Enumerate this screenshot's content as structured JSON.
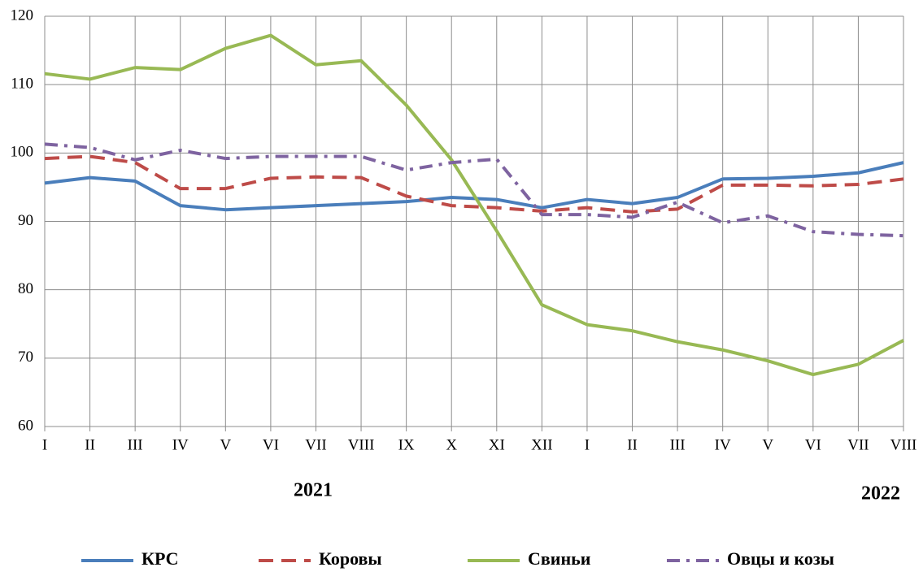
{
  "chart_data": {
    "type": "line",
    "categories": [
      "I",
      "II",
      "III",
      "IV",
      "V",
      "VI",
      "VII",
      "VIII",
      "IX",
      "X",
      "XI",
      "XII",
      "I",
      "II",
      "III",
      "IV",
      "V",
      "VI",
      "VII",
      "VIII"
    ],
    "series": [
      {
        "name": "КРС",
        "color": "#4a7ebb",
        "dash": "solid",
        "values": [
          95.6,
          96.4,
          95.9,
          92.3,
          91.7,
          92.0,
          92.3,
          92.6,
          92.9,
          93.5,
          93.2,
          92.0,
          93.2,
          92.6,
          93.5,
          96.2,
          96.3,
          96.6,
          97.1,
          98.6
        ]
      },
      {
        "name": "Коровы",
        "color": "#be4b48",
        "dash": "dashed",
        "values": [
          99.2,
          99.5,
          98.6,
          94.8,
          94.8,
          96.3,
          96.5,
          96.4,
          93.7,
          92.3,
          92.0,
          91.5,
          92.0,
          91.4,
          91.8,
          95.3,
          95.3,
          95.2,
          95.4,
          96.2
        ]
      },
      {
        "name": "Свиньи",
        "color": "#98b954",
        "dash": "solid",
        "values": [
          111.6,
          110.8,
          112.5,
          112.2,
          115.3,
          117.2,
          112.9,
          113.5,
          107.0,
          99.0,
          88.6,
          77.8,
          74.9,
          74.0,
          72.4,
          71.2,
          69.6,
          67.6,
          69.1,
          72.6
        ]
      },
      {
        "name": "Овцы и козы",
        "color": "#7e63a0",
        "dash": "dashdot",
        "values": [
          101.3,
          100.8,
          99.0,
          100.4,
          99.2,
          99.5,
          99.5,
          99.5,
          97.5,
          98.6,
          99.1,
          91.0,
          91.0,
          90.6,
          92.8,
          89.8,
          90.8,
          88.5,
          88.1,
          87.9
        ]
      }
    ],
    "annotations": [
      "2021",
      "2022"
    ],
    "ylim": [
      60,
      120
    ],
    "yticks": [
      60,
      70,
      80,
      90,
      100,
      110,
      120
    ],
    "grid": true,
    "legend": "bottom"
  }
}
